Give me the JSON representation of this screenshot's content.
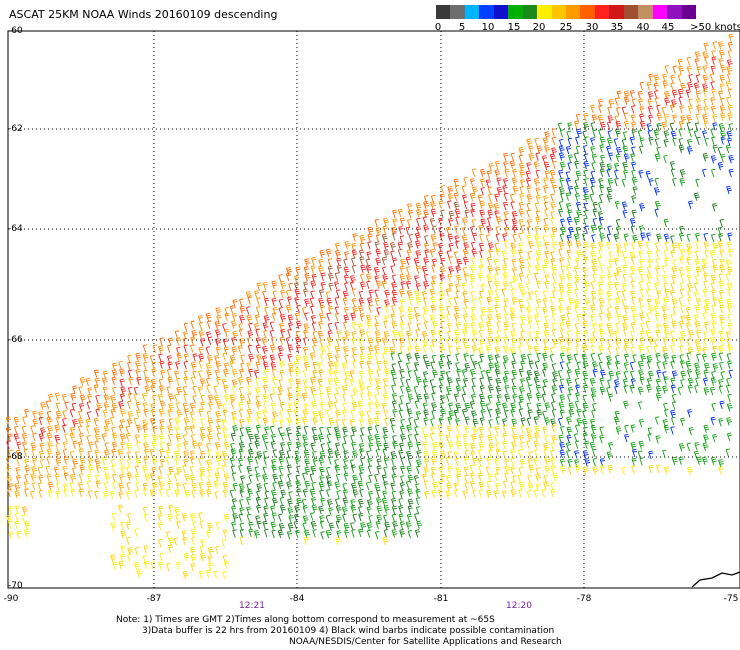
{
  "title": "ASCAT 25KM NOAA Winds 20160109 descending",
  "legend": {
    "colors": [
      "#3a3a3a",
      "#6e6e6e",
      "#00b4ff",
      "#0040ff",
      "#1010cc",
      "#00b000",
      "#1a8a1a",
      "#ffee00",
      "#ffc400",
      "#ff9a00",
      "#ff6000",
      "#ff2020",
      "#d01818",
      "#a05030",
      "#c09060",
      "#ff00ff",
      "#9010c0",
      "#6a0090"
    ],
    "tick_labels": [
      "0",
      "5",
      "10",
      "15",
      "20",
      "25",
      "30",
      "35",
      "40",
      "45",
      ">50 knots"
    ]
  },
  "map": {
    "lat_labels": [
      "-60",
      "-62",
      "-64",
      "-66",
      "-68",
      "-70"
    ],
    "lon_labels": [
      "-90",
      "-87",
      "-84",
      "-81",
      "-78",
      "-75"
    ],
    "time_labels": [
      "12:21",
      "12:20"
    ]
  },
  "notes": {
    "line1": "Note: 1) Times are GMT 2)Times along bottom correspond to measurement at ~65S",
    "line2": "3)Data buffer is 22 hrs from 20160109 4) Black wind barbs indicate possible contamination",
    "line3": "NOAA/NESDIS/Center for Satellite Applications and Research"
  }
}
